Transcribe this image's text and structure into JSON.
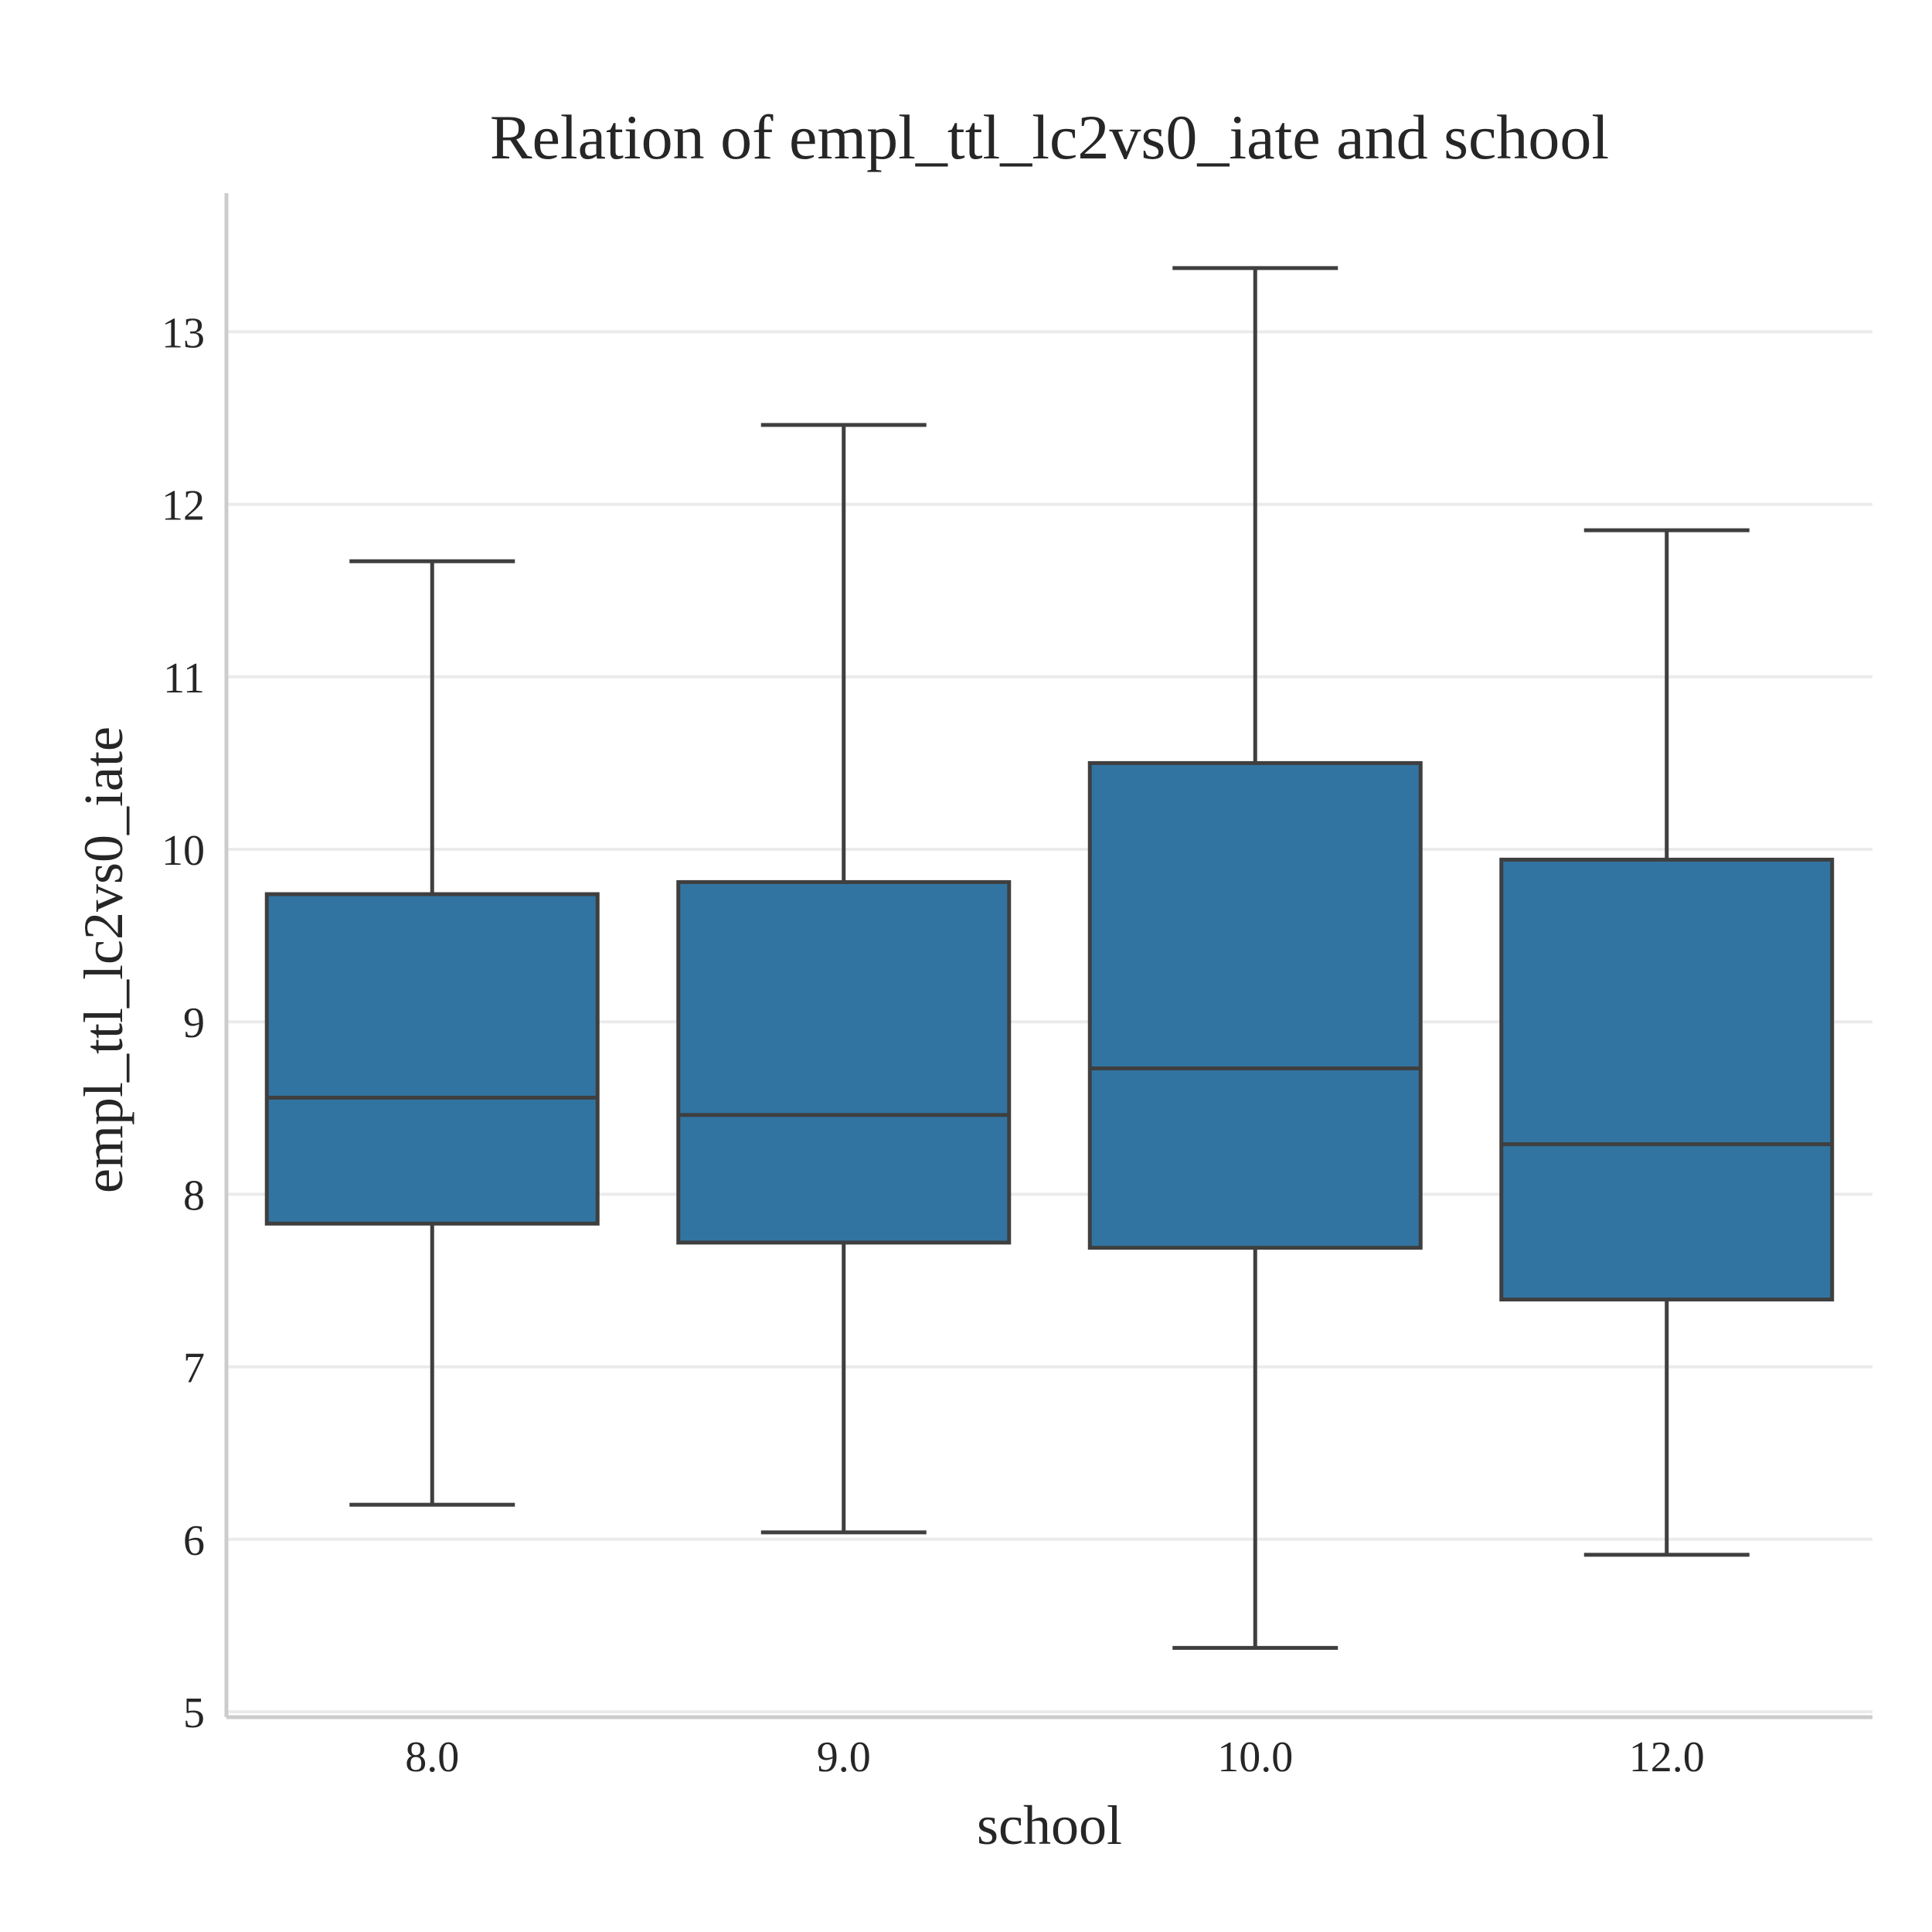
{
  "chart_data": {
    "type": "box",
    "title": "Relation of empl_ttl_lc2vs0_iate and school",
    "xlabel": "school",
    "ylabel": "empl_ttl_lc2vs0_iate",
    "categories": [
      "8.0",
      "9.0",
      "10.0",
      "12.0"
    ],
    "boxes": [
      {
        "category": "8.0",
        "whisker_low": 6.2,
        "q1": 7.83,
        "median": 8.56,
        "q3": 9.74,
        "whisker_high": 11.67
      },
      {
        "category": "9.0",
        "whisker_low": 6.04,
        "q1": 7.72,
        "median": 8.46,
        "q3": 9.81,
        "whisker_high": 12.46
      },
      {
        "category": "10.0",
        "whisker_low": 5.37,
        "q1": 7.69,
        "median": 8.73,
        "q3": 10.5,
        "whisker_high": 13.37
      },
      {
        "category": "12.0",
        "whisker_low": 5.91,
        "q1": 7.39,
        "median": 8.29,
        "q3": 9.94,
        "whisker_high": 11.85
      }
    ],
    "ylim": [
      5,
      13.8
    ],
    "yticks": [
      5,
      6,
      7,
      8,
      9,
      10,
      11,
      12,
      13
    ],
    "grid": "horizontal",
    "colors": {
      "box_fill": "#3274a1",
      "line": "#3f3f3f",
      "grid": "#ebebeb",
      "spine": "#cccccc",
      "text": "#262626"
    }
  }
}
